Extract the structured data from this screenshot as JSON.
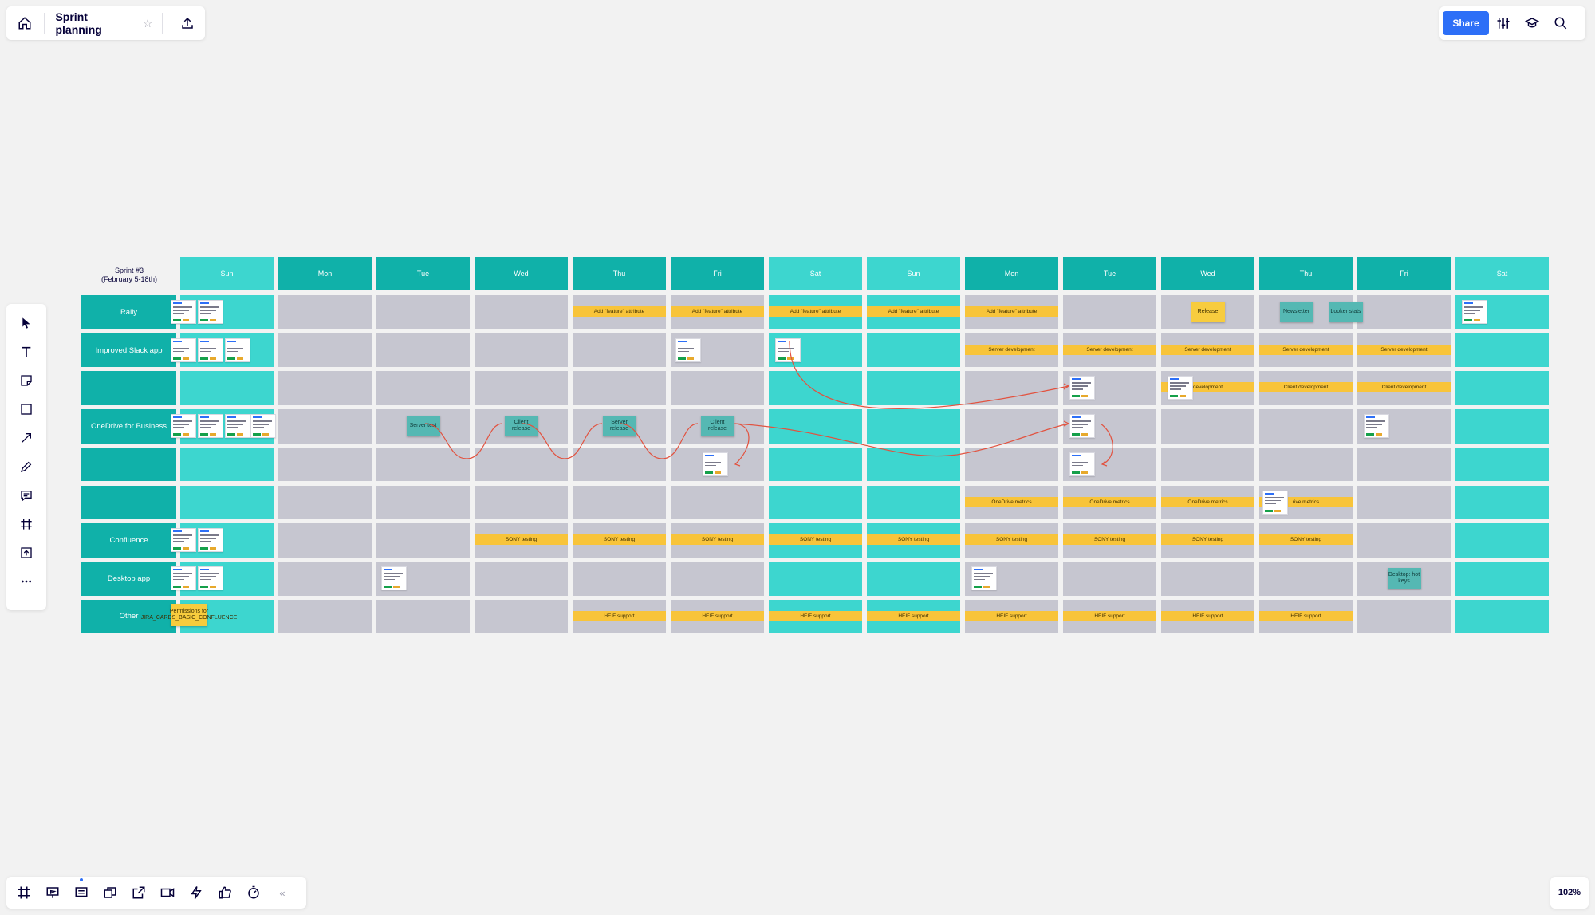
{
  "board": {
    "title": "Sprint planning",
    "sprint_title_line1": "Sprint #3",
    "sprint_title_line2": "(February 5-18th)",
    "zoom": "102%",
    "share_label": "Share"
  },
  "days": [
    "Sun",
    "Mon",
    "Tue",
    "Wed",
    "Thu",
    "Fri",
    "Sat",
    "Sun",
    "Mon",
    "Tue",
    "Wed",
    "Thu",
    "Fri",
    "Sat"
  ],
  "rows": [
    "Rally",
    "Improved Slack app",
    "",
    "OneDrive for Business",
    "",
    "",
    "Confluence",
    "Desktop app",
    "Other"
  ],
  "bars": [
    {
      "row": 0,
      "from": 4,
      "to": 4,
      "text": "Add \"feature\" attribute"
    },
    {
      "row": 0,
      "from": 5,
      "to": 5,
      "text": "Add \"feature\" attribute"
    },
    {
      "row": 0,
      "from": 6,
      "to": 6,
      "text": "Add \"feature\" attribute"
    },
    {
      "row": 0,
      "from": 7,
      "to": 7,
      "text": "Add \"feature\" attribute"
    },
    {
      "row": 0,
      "from": 8,
      "to": 8,
      "text": "Add \"feature\" attribute"
    },
    {
      "row": 1,
      "from": 8,
      "to": 8,
      "text": "Server development"
    },
    {
      "row": 1,
      "from": 9,
      "to": 9,
      "text": "Server development"
    },
    {
      "row": 1,
      "from": 10,
      "to": 10,
      "text": "Server development"
    },
    {
      "row": 1,
      "from": 11,
      "to": 11,
      "text": "Server development"
    },
    {
      "row": 1,
      "from": 12,
      "to": 12,
      "text": "Server development"
    },
    {
      "row": 2,
      "from": 10,
      "to": 10,
      "text": "development"
    },
    {
      "row": 2,
      "from": 11,
      "to": 11,
      "text": "Client development"
    },
    {
      "row": 2,
      "from": 12,
      "to": 12,
      "text": "Client development"
    },
    {
      "row": 5,
      "from": 8,
      "to": 8,
      "text": "OneDrive metrics"
    },
    {
      "row": 5,
      "from": 9,
      "to": 9,
      "text": "OneDrive metrics"
    },
    {
      "row": 5,
      "from": 10,
      "to": 10,
      "text": "OneDrive metrics"
    },
    {
      "row": 5,
      "from": 11,
      "to": 11,
      "text": "rive metrics"
    },
    {
      "row": 6,
      "from": 3,
      "to": 3,
      "text": "SONY testing"
    },
    {
      "row": 6,
      "from": 4,
      "to": 4,
      "text": "SONY testing"
    },
    {
      "row": 6,
      "from": 5,
      "to": 5,
      "text": "SONY testing"
    },
    {
      "row": 6,
      "from": 6,
      "to": 6,
      "text": "SONY testing"
    },
    {
      "row": 6,
      "from": 7,
      "to": 7,
      "text": "SONY testing"
    },
    {
      "row": 6,
      "from": 8,
      "to": 8,
      "text": "SONY testing"
    },
    {
      "row": 6,
      "from": 9,
      "to": 9,
      "text": "SONY testing"
    },
    {
      "row": 6,
      "from": 10,
      "to": 10,
      "text": "SONY testing"
    },
    {
      "row": 6,
      "from": 11,
      "to": 11,
      "text": "SONY testing"
    },
    {
      "row": 8,
      "from": 4,
      "to": 4,
      "text": "HEIF support"
    },
    {
      "row": 8,
      "from": 5,
      "to": 5,
      "text": "HEIF support"
    },
    {
      "row": 8,
      "from": 6,
      "to": 6,
      "text": "HEIF support"
    },
    {
      "row": 8,
      "from": 7,
      "to": 7,
      "text": "HEIF support"
    },
    {
      "row": 8,
      "from": 8,
      "to": 8,
      "text": "HEIF support"
    },
    {
      "row": 8,
      "from": 9,
      "to": 9,
      "text": "HEIF support"
    },
    {
      "row": 8,
      "from": 10,
      "to": 10,
      "text": "HEIF support"
    },
    {
      "row": 8,
      "from": 11,
      "to": 11,
      "text": "HEIF support"
    }
  ],
  "stickies": [
    {
      "kind": "yellow",
      "row": 0,
      "col": 10,
      "text": "Release"
    },
    {
      "kind": "teal",
      "row": 0,
      "col": 11,
      "text": "Newsletter"
    },
    {
      "kind": "teal",
      "row": 0,
      "col": 11,
      "text": "Looker stats",
      "offset": 1
    },
    {
      "kind": "teal",
      "row": 3,
      "col": 2,
      "text": "Server test"
    },
    {
      "kind": "teal",
      "row": 3,
      "col": 3,
      "text": "Client release"
    },
    {
      "kind": "teal",
      "row": 3,
      "col": 4,
      "text": "Server release"
    },
    {
      "kind": "teal",
      "row": 3,
      "col": 5,
      "text": "Client release"
    },
    {
      "kind": "teal",
      "row": 7,
      "col": 12,
      "text": "Desktop: hot keys"
    },
    {
      "kind": "yellow",
      "row": 8,
      "col": 0,
      "text": "Permissions for JIRA_CARDS_BASIC_CONFLUENCE"
    }
  ]
}
